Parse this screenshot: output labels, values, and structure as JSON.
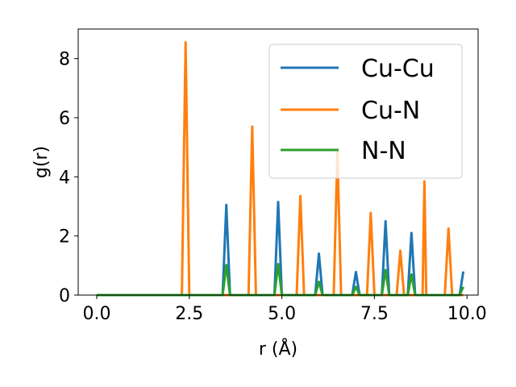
{
  "chart_data": {
    "type": "line",
    "title": "",
    "xlabel": "r (Å)",
    "ylabel": "g(r)",
    "xlim": [
      -0.5,
      10.3
    ],
    "ylim": [
      0,
      9
    ],
    "xticks": [
      0.0,
      2.5,
      5.0,
      7.5,
      10.0
    ],
    "xtick_labels": [
      "0.0",
      "2.5",
      "5.0",
      "7.5",
      "10.0"
    ],
    "yticks": [
      0,
      2,
      4,
      6,
      8
    ],
    "ytick_labels": [
      "0",
      "2",
      "4",
      "6",
      "8"
    ],
    "grid": false,
    "legend_position": "top-right",
    "series": [
      {
        "name": "Cu-Cu",
        "color": "#1f77b4",
        "peaks": [
          [
            3.5,
            3.05
          ],
          [
            4.9,
            3.15
          ],
          [
            6.0,
            1.4
          ],
          [
            7.0,
            0.78
          ],
          [
            7.8,
            2.5
          ],
          [
            8.5,
            2.1
          ],
          [
            9.9,
            0.8
          ]
        ]
      },
      {
        "name": "Cu-N",
        "color": "#ff7f0e",
        "peaks": [
          [
            2.4,
            8.55
          ],
          [
            4.2,
            5.7
          ],
          [
            5.5,
            3.35
          ],
          [
            6.5,
            4.85
          ],
          [
            7.4,
            2.78
          ],
          [
            8.2,
            1.5
          ],
          [
            8.85,
            3.85
          ],
          [
            9.5,
            2.25
          ]
        ]
      },
      {
        "name": "N-N",
        "color": "#2ca02c",
        "peaks": [
          [
            3.5,
            1.02
          ],
          [
            4.9,
            1.05
          ],
          [
            6.0,
            0.45
          ],
          [
            7.0,
            0.28
          ],
          [
            7.8,
            0.85
          ],
          [
            8.5,
            0.7
          ],
          [
            9.9,
            0.28
          ]
        ]
      }
    ]
  }
}
